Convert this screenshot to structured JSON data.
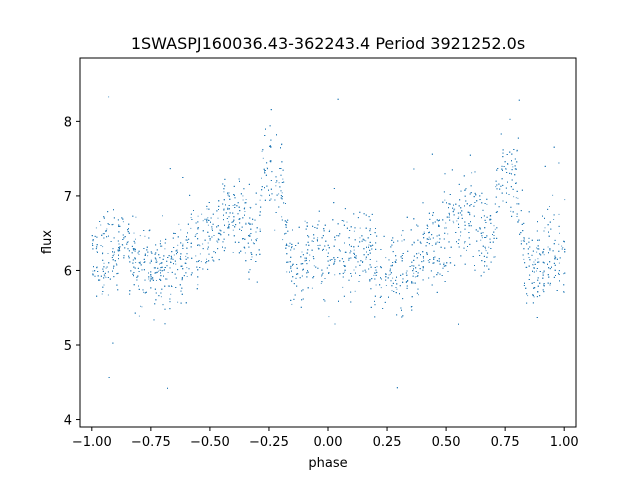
{
  "chart_data": {
    "type": "scatter",
    "title": "1SWASPJ160036.43-362243.4 Period 3921252.0s",
    "xlabel": "phase",
    "ylabel": "flux",
    "xlim": [
      -1.05,
      1.05
    ],
    "ylim": [
      3.9,
      8.85
    ],
    "xticks": [
      -1.0,
      -0.75,
      -0.5,
      -0.25,
      0.0,
      0.25,
      0.5,
      0.75,
      1.0
    ],
    "xtick_labels": [
      "−1.00",
      "−0.75",
      "−0.50",
      "−0.25",
      "0.00",
      "0.25",
      "0.50",
      "0.75",
      "1.00"
    ],
    "yticks": [
      4,
      5,
      6,
      7,
      8
    ],
    "ytick_labels": [
      "4",
      "5",
      "6",
      "7",
      "8"
    ],
    "grid": false,
    "series_color": "#1f77b4",
    "light_curve_one_cycle": [
      {
        "phase": 0.0,
        "flux": 6.2
      },
      {
        "phase": 0.05,
        "flux": 6.3
      },
      {
        "phase": 0.1,
        "flux": 6.2
      },
      {
        "phase": 0.15,
        "flux": 6.3
      },
      {
        "phase": 0.2,
        "flux": 6.1
      },
      {
        "phase": 0.25,
        "flux": 6.0
      },
      {
        "phase": 0.3,
        "flux": 6.0
      },
      {
        "phase": 0.35,
        "flux": 6.05
      },
      {
        "phase": 0.4,
        "flux": 6.2
      },
      {
        "phase": 0.45,
        "flux": 6.4
      },
      {
        "phase": 0.5,
        "flux": 6.5
      },
      {
        "phase": 0.55,
        "flux": 6.7
      },
      {
        "phase": 0.6,
        "flux": 6.8
      },
      {
        "phase": 0.65,
        "flux": 6.55
      },
      {
        "phase": 0.7,
        "flux": 6.4
      },
      {
        "phase": 0.72,
        "flux": 7.3
      },
      {
        "phase": 0.75,
        "flux": 7.4
      },
      {
        "phase": 0.8,
        "flux": 7.2
      },
      {
        "phase": 0.83,
        "flux": 6.2
      },
      {
        "phase": 0.88,
        "flux": 6.0
      },
      {
        "phase": 0.93,
        "flux": 6.3
      },
      {
        "phase": 1.0,
        "flux": 6.2
      }
    ]
  }
}
